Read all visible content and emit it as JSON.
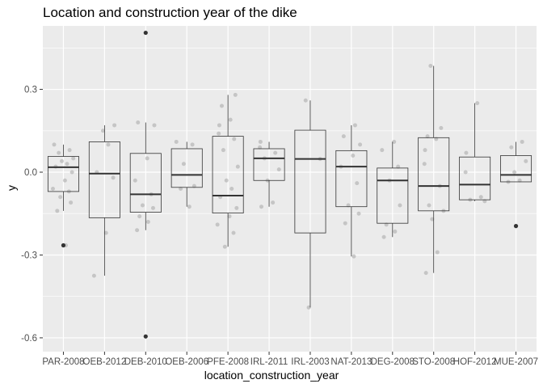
{
  "chart_data": {
    "type": "boxplot",
    "title": "Location and construction year of the dike",
    "xlabel": "location_construction_year",
    "ylabel": "y",
    "ylim": [
      -0.65,
      0.53
    ],
    "yticks": [
      -0.6,
      -0.3,
      0.0,
      0.3
    ],
    "ytick_labels": [
      "-0.6",
      "-0.3",
      "0.0",
      "0.3"
    ],
    "grid": true,
    "colors": {
      "panel": "#ebebeb",
      "grid": "#ffffff",
      "box": "#333333",
      "jitter": "#a6a6a6",
      "outlier": "#333333"
    },
    "categories": [
      "PAR-2008",
      "OEB-2012",
      "DEB-2010",
      "OEB-2006",
      "PFE-2008",
      "IRL-2011",
      "IRL-2003",
      "NAT-2013",
      "DEG-2008",
      "STO-2008",
      "HOF-2012",
      "MUE-2007"
    ],
    "boxes": [
      {
        "q1": -0.07,
        "median": 0.018,
        "q3": 0.057,
        "whisker_low": -0.14,
        "whisker_high": 0.1,
        "outliers": [
          -0.265
        ]
      },
      {
        "q1": -0.165,
        "median": -0.005,
        "q3": 0.11,
        "whisker_low": -0.375,
        "whisker_high": 0.17,
        "outliers": []
      },
      {
        "q1": -0.145,
        "median": -0.08,
        "q3": 0.068,
        "whisker_low": -0.21,
        "whisker_high": 0.18,
        "outliers": [
          0.505,
          -0.595
        ]
      },
      {
        "q1": -0.055,
        "median": -0.01,
        "q3": 0.085,
        "whisker_low": -0.125,
        "whisker_high": 0.11,
        "outliers": []
      },
      {
        "q1": -0.148,
        "median": -0.085,
        "q3": 0.13,
        "whisker_low": -0.27,
        "whisker_high": 0.28,
        "outliers": []
      },
      {
        "q1": -0.03,
        "median": 0.05,
        "q3": 0.085,
        "whisker_low": -0.125,
        "whisker_high": 0.11,
        "outliers": []
      },
      {
        "q1": -0.22,
        "median": 0.048,
        "q3": 0.152,
        "whisker_low": -0.49,
        "whisker_high": 0.26,
        "outliers": []
      },
      {
        "q1": -0.125,
        "median": 0.02,
        "q3": 0.078,
        "whisker_low": -0.305,
        "whisker_high": 0.17,
        "outliers": []
      },
      {
        "q1": -0.185,
        "median": -0.03,
        "q3": 0.015,
        "whisker_low": -0.235,
        "whisker_high": 0.11,
        "outliers": []
      },
      {
        "q1": -0.14,
        "median": -0.05,
        "q3": 0.125,
        "whisker_low": -0.365,
        "whisker_high": 0.385,
        "outliers": []
      },
      {
        "q1": -0.1,
        "median": -0.045,
        "q3": 0.055,
        "whisker_low": -0.105,
        "whisker_high": 0.25,
        "outliers": []
      },
      {
        "q1": -0.035,
        "median": -0.01,
        "q3": 0.06,
        "whisker_low": -0.035,
        "whisker_high": 0.11,
        "outliers": [
          -0.195
        ]
      }
    ],
    "jitter_points": [
      [
        0.1,
        0.08,
        0.07,
        0.05,
        0.04,
        0.03,
        0.02,
        0.0,
        -0.03,
        -0.06,
        -0.07,
        -0.09,
        -0.11,
        -0.14,
        -0.265
      ],
      [
        0.17,
        0.15,
        0.1,
        0.0,
        -0.02,
        -0.22,
        -0.375
      ],
      [
        0.18,
        0.17,
        0.05,
        -0.03,
        -0.08,
        -0.12,
        -0.13,
        -0.16,
        -0.18,
        -0.21
      ],
      [
        0.11,
        0.1,
        0.03,
        -0.05,
        -0.06,
        -0.125
      ],
      [
        0.28,
        0.24,
        0.19,
        0.17,
        0.14,
        0.12,
        0.08,
        0.02,
        -0.03,
        -0.06,
        -0.09,
        -0.13,
        -0.16,
        -0.19,
        -0.22,
        -0.27
      ],
      [
        0.11,
        0.09,
        0.07,
        0.05,
        0.01,
        -0.03,
        -0.11,
        -0.125
      ],
      [
        0.26,
        0.048,
        -0.49
      ],
      [
        0.17,
        0.13,
        0.1,
        0.06,
        0.02,
        -0.04,
        -0.12,
        -0.15,
        -0.185,
        -0.305
      ],
      [
        0.11,
        0.08,
        0.02,
        -0.03,
        -0.12,
        -0.19,
        -0.215,
        -0.235
      ],
      [
        0.385,
        0.16,
        0.13,
        0.12,
        0.08,
        0.03,
        -0.05,
        -0.12,
        -0.14,
        -0.17,
        -0.29,
        -0.365
      ],
      [
        0.25,
        0.07,
        0.0,
        -0.09,
        -0.1,
        -0.105
      ],
      [
        0.11,
        0.09,
        0.04,
        0.0,
        -0.03,
        -0.035
      ]
    ]
  }
}
